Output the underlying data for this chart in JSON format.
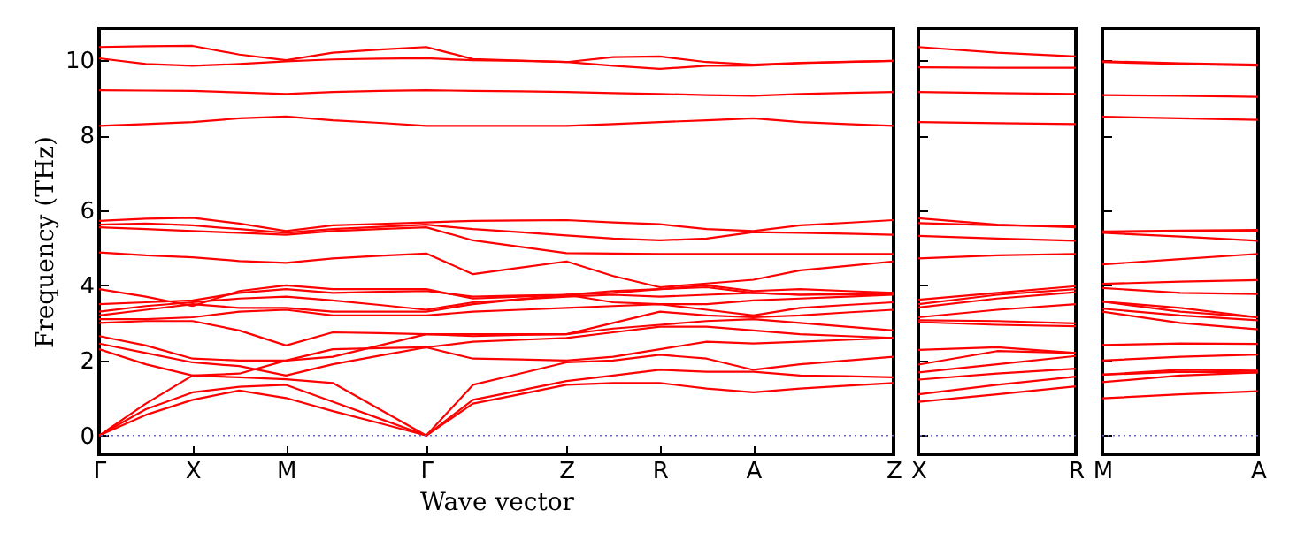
{
  "chart_data": [
    {
      "type": "line",
      "ylabel": "Frequency (THz)",
      "xlabel": "Wave vector",
      "categories": [
        "Γ",
        null,
        "X",
        null,
        "M",
        null,
        null,
        "Γ",
        null,
        null,
        "Z",
        null,
        "R",
        null,
        "A",
        null,
        null,
        "Z"
      ],
      "ylim": [
        -0.5,
        10.85
      ],
      "yticks": [
        0,
        2,
        4,
        6,
        8,
        10
      ],
      "grid": false,
      "legend": false,
      "line_style": "solid",
      "marker": "none",
      "ref_lines": [
        {
          "axis": "y",
          "value": 0,
          "color": "#6666cc",
          "line_style": "dotted"
        }
      ],
      "series": [
        {
          "color": "#ff0000",
          "values": [
            0,
            0.55,
            0.95,
            1.2,
            1.0,
            0.65,
            0.33,
            0,
            0.85,
            1.1,
            1.35,
            1.4,
            1.4,
            1.25,
            1.15,
            1.25,
            1.33,
            1.4
          ]
        },
        {
          "color": "#ff0000",
          "values": [
            0,
            0.7,
            1.15,
            1.3,
            1.35,
            0.9,
            0.45,
            0,
            0.95,
            1.2,
            1.45,
            1.6,
            1.75,
            1.7,
            1.7,
            1.6,
            1.58,
            1.55
          ]
        },
        {
          "color": "#ff0000",
          "values": [
            0,
            0.85,
            1.6,
            1.55,
            1.5,
            1.4,
            0.7,
            0,
            1.35,
            1.65,
            1.95,
            2.0,
            2.15,
            2.05,
            1.75,
            1.9,
            2.0,
            2.1
          ]
        },
        {
          "color": "#ff0000",
          "values": [
            2.3,
            1.9,
            1.6,
            1.65,
            2.0,
            2.3,
            2.33,
            2.35,
            2.05,
            2.03,
            2.0,
            2.1,
            2.3,
            2.5,
            2.45,
            2.5,
            2.55,
            2.6
          ]
        },
        {
          "color": "#ff0000",
          "values": [
            2.45,
            2.2,
            1.95,
            1.85,
            1.6,
            1.9,
            2.13,
            2.35,
            2.5,
            2.55,
            2.6,
            2.75,
            2.9,
            2.9,
            2.8,
            2.7,
            2.65,
            2.6
          ]
        },
        {
          "color": "#ff0000",
          "values": [
            2.65,
            2.4,
            2.05,
            2.0,
            2.0,
            2.1,
            2.4,
            2.7,
            2.7,
            2.7,
            2.7,
            2.85,
            2.95,
            3.05,
            3.1,
            3.0,
            2.9,
            2.8
          ]
        },
        {
          "color": "#ff0000",
          "values": [
            3.0,
            3.05,
            3.05,
            2.8,
            2.4,
            2.75,
            2.73,
            2.7,
            2.65,
            2.68,
            2.7,
            3.0,
            3.3,
            3.2,
            3.15,
            3.2,
            3.28,
            3.35
          ]
        },
        {
          "color": "#ff0000",
          "values": [
            3.1,
            3.1,
            3.15,
            3.3,
            3.35,
            3.2,
            3.2,
            3.2,
            3.3,
            3.35,
            3.4,
            3.45,
            3.5,
            3.35,
            3.2,
            3.4,
            3.48,
            3.55
          ]
        },
        {
          "color": "#ff0000",
          "values": [
            3.2,
            3.35,
            3.5,
            3.4,
            3.4,
            3.3,
            3.3,
            3.3,
            3.5,
            3.63,
            3.75,
            3.55,
            3.5,
            3.5,
            3.6,
            3.65,
            3.7,
            3.75
          ]
        },
        {
          "color": "#ff0000",
          "values": [
            3.3,
            3.45,
            3.55,
            3.65,
            3.7,
            3.6,
            3.48,
            3.35,
            3.55,
            3.63,
            3.7,
            3.75,
            3.7,
            3.75,
            3.8,
            3.75,
            3.78,
            3.8
          ]
        },
        {
          "color": "#ff0000",
          "values": [
            3.5,
            3.55,
            3.6,
            3.8,
            3.9,
            3.8,
            3.83,
            3.85,
            3.7,
            3.73,
            3.75,
            3.8,
            3.9,
            4.0,
            3.85,
            3.9,
            3.85,
            3.8
          ]
        },
        {
          "color": "#ff0000",
          "values": [
            3.9,
            3.7,
            3.45,
            3.85,
            4.0,
            3.9,
            3.9,
            3.9,
            3.65,
            3.7,
            3.75,
            3.85,
            3.9,
            3.95,
            3.8,
            3.75,
            3.76,
            3.77
          ]
        },
        {
          "color": "#ff0000",
          "values": [
            4.88,
            4.8,
            4.75,
            4.65,
            4.6,
            4.72,
            4.79,
            4.85,
            4.3,
            4.47,
            4.64,
            4.25,
            3.95,
            4.05,
            4.15,
            4.4,
            4.52,
            4.64
          ]
        },
        {
          "color": "#ff0000",
          "values": [
            5.55,
            5.5,
            5.45,
            5.4,
            5.35,
            5.45,
            5.5,
            5.55,
            5.2,
            5.03,
            4.86,
            4.85,
            4.84,
            4.84,
            4.84,
            4.84,
            4.84,
            4.84
          ]
        },
        {
          "color": "#ff0000",
          "values": [
            5.62,
            5.65,
            5.6,
            5.5,
            5.4,
            5.5,
            5.56,
            5.62,
            5.5,
            5.42,
            5.33,
            5.25,
            5.2,
            5.25,
            5.42,
            5.4,
            5.38,
            5.35
          ]
        },
        {
          "color": "#ff0000",
          "values": [
            5.72,
            5.78,
            5.8,
            5.65,
            5.45,
            5.6,
            5.64,
            5.68,
            5.72,
            5.73,
            5.74,
            5.68,
            5.63,
            5.5,
            5.45,
            5.6,
            5.67,
            5.74
          ]
        },
        {
          "color": "#ff0000",
          "values": [
            8.25,
            8.3,
            8.35,
            8.45,
            8.5,
            8.4,
            8.33,
            8.25,
            8.25,
            8.25,
            8.25,
            8.3,
            8.35,
            8.4,
            8.45,
            8.35,
            8.3,
            8.25
          ]
        },
        {
          "color": "#ff0000",
          "values": [
            9.2,
            9.19,
            9.18,
            9.14,
            9.1,
            9.15,
            9.18,
            9.2,
            9.18,
            9.17,
            9.15,
            9.12,
            9.1,
            9.07,
            9.05,
            9.1,
            9.13,
            9.15
          ]
        },
        {
          "color": "#ff0000",
          "values": [
            10.05,
            9.9,
            9.85,
            9.9,
            9.97,
            10.02,
            10.04,
            10.05,
            10.0,
            9.98,
            9.95,
            9.85,
            9.77,
            9.85,
            9.86,
            9.92,
            9.95,
            9.98
          ]
        },
        {
          "color": "#ff0000",
          "values": [
            10.35,
            10.37,
            10.38,
            10.15,
            10.0,
            10.2,
            10.28,
            10.35,
            10.03,
            9.99,
            9.95,
            10.08,
            10.1,
            9.95,
            9.88,
            9.93,
            9.96,
            9.98
          ]
        }
      ]
    },
    {
      "type": "line",
      "categories": [
        "X",
        null,
        "R"
      ],
      "ylim": [
        -0.5,
        10.85
      ],
      "yticks": [
        0,
        2,
        4,
        6,
        8,
        10
      ],
      "tick_labels": "x",
      "grid": false,
      "legend": false,
      "line_style": "solid",
      "marker": "none",
      "ref_lines": [
        {
          "axis": "y",
          "value": 0,
          "color": "#6666cc",
          "line_style": "dotted"
        }
      ],
      "series": [
        {
          "color": "#ff0000",
          "values": [
            0.9,
            1.1,
            1.31
          ]
        },
        {
          "color": "#ff0000",
          "values": [
            1.1,
            1.35,
            1.57
          ]
        },
        {
          "color": "#ff0000",
          "values": [
            1.49,
            1.65,
            1.78
          ]
        },
        {
          "color": "#ff0000",
          "values": [
            1.68,
            1.9,
            2.12
          ]
        },
        {
          "color": "#ff0000",
          "values": [
            1.89,
            2.25,
            2.2
          ]
        },
        {
          "color": "#ff0000",
          "values": [
            2.28,
            2.35,
            2.2
          ]
        },
        {
          "color": "#ff0000",
          "values": [
            3.02,
            2.95,
            2.91
          ]
        },
        {
          "color": "#ff0000",
          "values": [
            3.07,
            3.05,
            2.99
          ]
        },
        {
          "color": "#ff0000",
          "values": [
            3.15,
            3.35,
            3.5
          ]
        },
        {
          "color": "#ff0000",
          "values": [
            3.41,
            3.65,
            3.82
          ]
        },
        {
          "color": "#ff0000",
          "values": [
            3.5,
            3.75,
            3.9
          ]
        },
        {
          "color": "#ff0000",
          "values": [
            3.62,
            3.8,
            3.98
          ]
        },
        {
          "color": "#ff0000",
          "values": [
            4.72,
            4.8,
            4.84
          ]
        },
        {
          "color": "#ff0000",
          "values": [
            5.32,
            5.25,
            5.19
          ]
        },
        {
          "color": "#ff0000",
          "values": [
            5.66,
            5.6,
            5.58
          ]
        },
        {
          "color": "#ff0000",
          "values": [
            5.79,
            5.62,
            5.55
          ]
        },
        {
          "color": "#ff0000",
          "values": [
            8.35,
            8.32,
            8.3
          ]
        },
        {
          "color": "#ff0000",
          "values": [
            9.15,
            9.12,
            9.1
          ]
        },
        {
          "color": "#ff0000",
          "values": [
            9.81,
            9.8,
            9.8
          ]
        },
        {
          "color": "#ff0000",
          "values": [
            10.35,
            10.2,
            10.1
          ]
        }
      ]
    },
    {
      "type": "line",
      "categories": [
        "M",
        null,
        "A"
      ],
      "ylim": [
        -0.5,
        10.85
      ],
      "yticks": [
        0,
        2,
        4,
        6,
        8,
        10
      ],
      "tick_labels": "x",
      "grid": false,
      "legend": false,
      "line_style": "solid",
      "marker": "none",
      "ref_lines": [
        {
          "axis": "y",
          "value": 0,
          "color": "#6666cc",
          "line_style": "dotted"
        }
      ],
      "series": [
        {
          "color": "#ff0000",
          "values": [
            0.99,
            1.1,
            1.18
          ]
        },
        {
          "color": "#ff0000",
          "values": [
            1.42,
            1.6,
            1.68
          ]
        },
        {
          "color": "#ff0000",
          "values": [
            1.62,
            1.7,
            1.68
          ]
        },
        {
          "color": "#ff0000",
          "values": [
            1.62,
            1.75,
            1.73
          ]
        },
        {
          "color": "#ff0000",
          "values": [
            2.0,
            2.1,
            2.16
          ]
        },
        {
          "color": "#ff0000",
          "values": [
            2.41,
            2.45,
            2.44
          ]
        },
        {
          "color": "#ff0000",
          "values": [
            3.3,
            3.0,
            2.83
          ]
        },
        {
          "color": "#ff0000",
          "values": [
            3.38,
            3.2,
            3.07
          ]
        },
        {
          "color": "#ff0000",
          "values": [
            3.57,
            3.3,
            3.15
          ]
        },
        {
          "color": "#ff0000",
          "values": [
            3.57,
            3.4,
            3.15
          ]
        },
        {
          "color": "#ff0000",
          "values": [
            3.93,
            3.8,
            3.77
          ]
        },
        {
          "color": "#ff0000",
          "values": [
            4.04,
            4.1,
            4.14
          ]
        },
        {
          "color": "#ff0000",
          "values": [
            4.56,
            4.7,
            4.84
          ]
        },
        {
          "color": "#ff0000",
          "values": [
            5.4,
            5.3,
            5.19
          ]
        },
        {
          "color": "#ff0000",
          "values": [
            5.42,
            5.44,
            5.46
          ]
        },
        {
          "color": "#ff0000",
          "values": [
            5.44,
            5.46,
            5.48
          ]
        },
        {
          "color": "#ff0000",
          "values": [
            8.49,
            8.45,
            8.41
          ]
        },
        {
          "color": "#ff0000",
          "values": [
            9.07,
            9.05,
            9.02
          ]
        },
        {
          "color": "#ff0000",
          "values": [
            9.95,
            9.9,
            9.86
          ]
        },
        {
          "color": "#ff0000",
          "values": [
            9.97,
            9.92,
            9.88
          ]
        }
      ]
    }
  ]
}
